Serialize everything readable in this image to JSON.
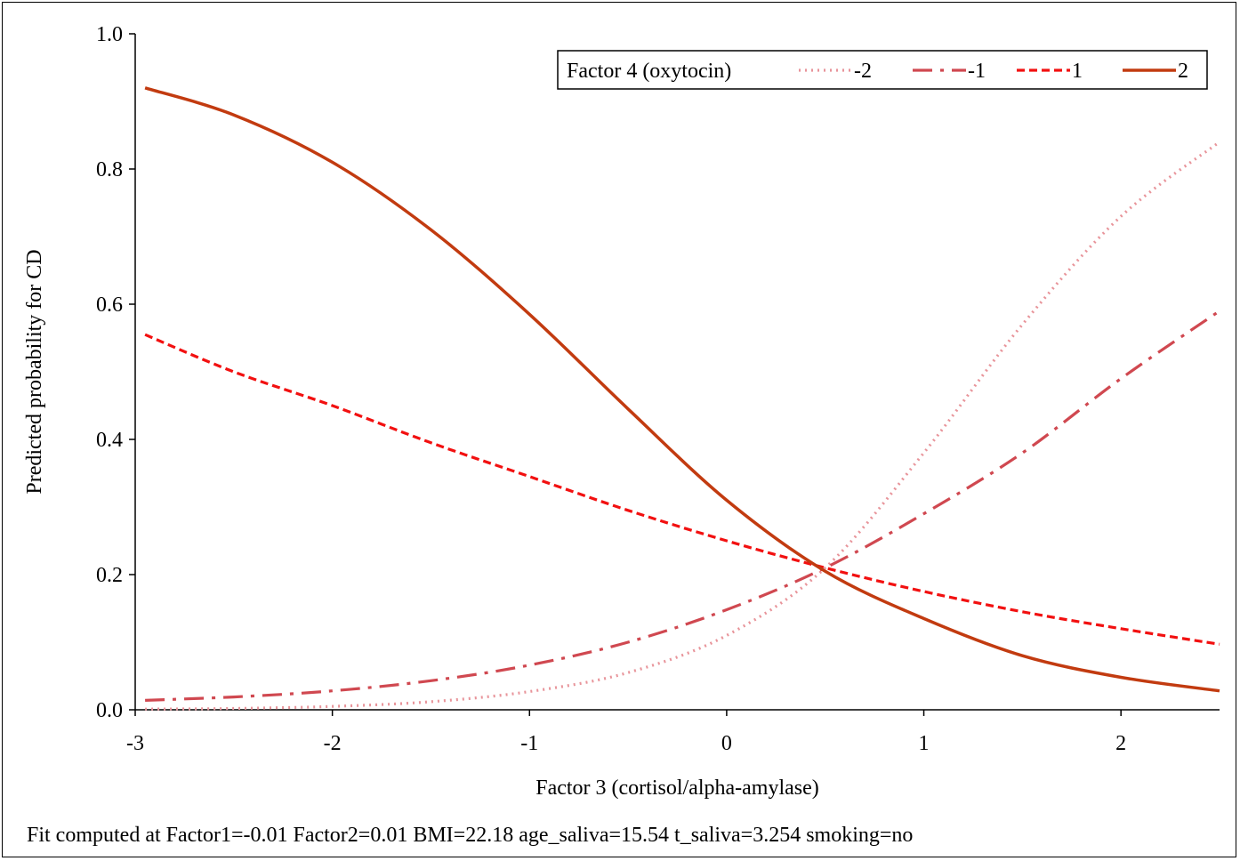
{
  "chart_data": {
    "type": "line",
    "xlabel": "Factor 3 (cortisol/alpha-amylase)",
    "ylabel": "Predicted probability for CD",
    "xlim": [
      -3,
      2.5
    ],
    "ylim": [
      0,
      1
    ],
    "x_ticks": [
      "-3",
      "-2",
      "-1",
      "0",
      "1",
      "2"
    ],
    "y_ticks": [
      "0.0",
      "0.2",
      "0.4",
      "0.6",
      "0.8",
      "1.0"
    ],
    "grid": false,
    "legend": {
      "title": "Factor 4 (oxytocin)",
      "position": "top-right",
      "entries": [
        "-2",
        "-1",
        "1",
        "2"
      ]
    },
    "x": [
      -2.95,
      -2.5,
      -2.0,
      -1.5,
      -1.0,
      -0.5,
      0.0,
      0.5,
      1.0,
      1.5,
      2.0,
      2.5
    ],
    "series": [
      {
        "name": "-2",
        "color": "#e8949a",
        "style": "dotted",
        "values": [
          0.001,
          0.002,
          0.005,
          0.012,
          0.027,
          0.055,
          0.11,
          0.21,
          0.38,
          0.57,
          0.73,
          0.84
        ]
      },
      {
        "name": "-1",
        "color": "#d04850",
        "style": "dash-dot",
        "values": [
          0.014,
          0.019,
          0.028,
          0.043,
          0.066,
          0.1,
          0.148,
          0.21,
          0.29,
          0.38,
          0.49,
          0.59
        ]
      },
      {
        "name": "1",
        "color": "#f21010",
        "style": "dashed",
        "values": [
          0.555,
          0.5,
          0.45,
          0.395,
          0.345,
          0.295,
          0.25,
          0.21,
          0.175,
          0.145,
          0.12,
          0.097
        ]
      },
      {
        "name": "2",
        "color": "#c23b10",
        "style": "solid",
        "values": [
          0.92,
          0.88,
          0.81,
          0.71,
          0.585,
          0.445,
          0.31,
          0.205,
          0.135,
          0.08,
          0.048,
          0.028
        ]
      }
    ]
  },
  "footnote": "Fit computed at Factor1=-0.01 Factor2=0.01 BMI=22.18 age_saliva=15.54 t_saliva=3.254 smoking=no"
}
